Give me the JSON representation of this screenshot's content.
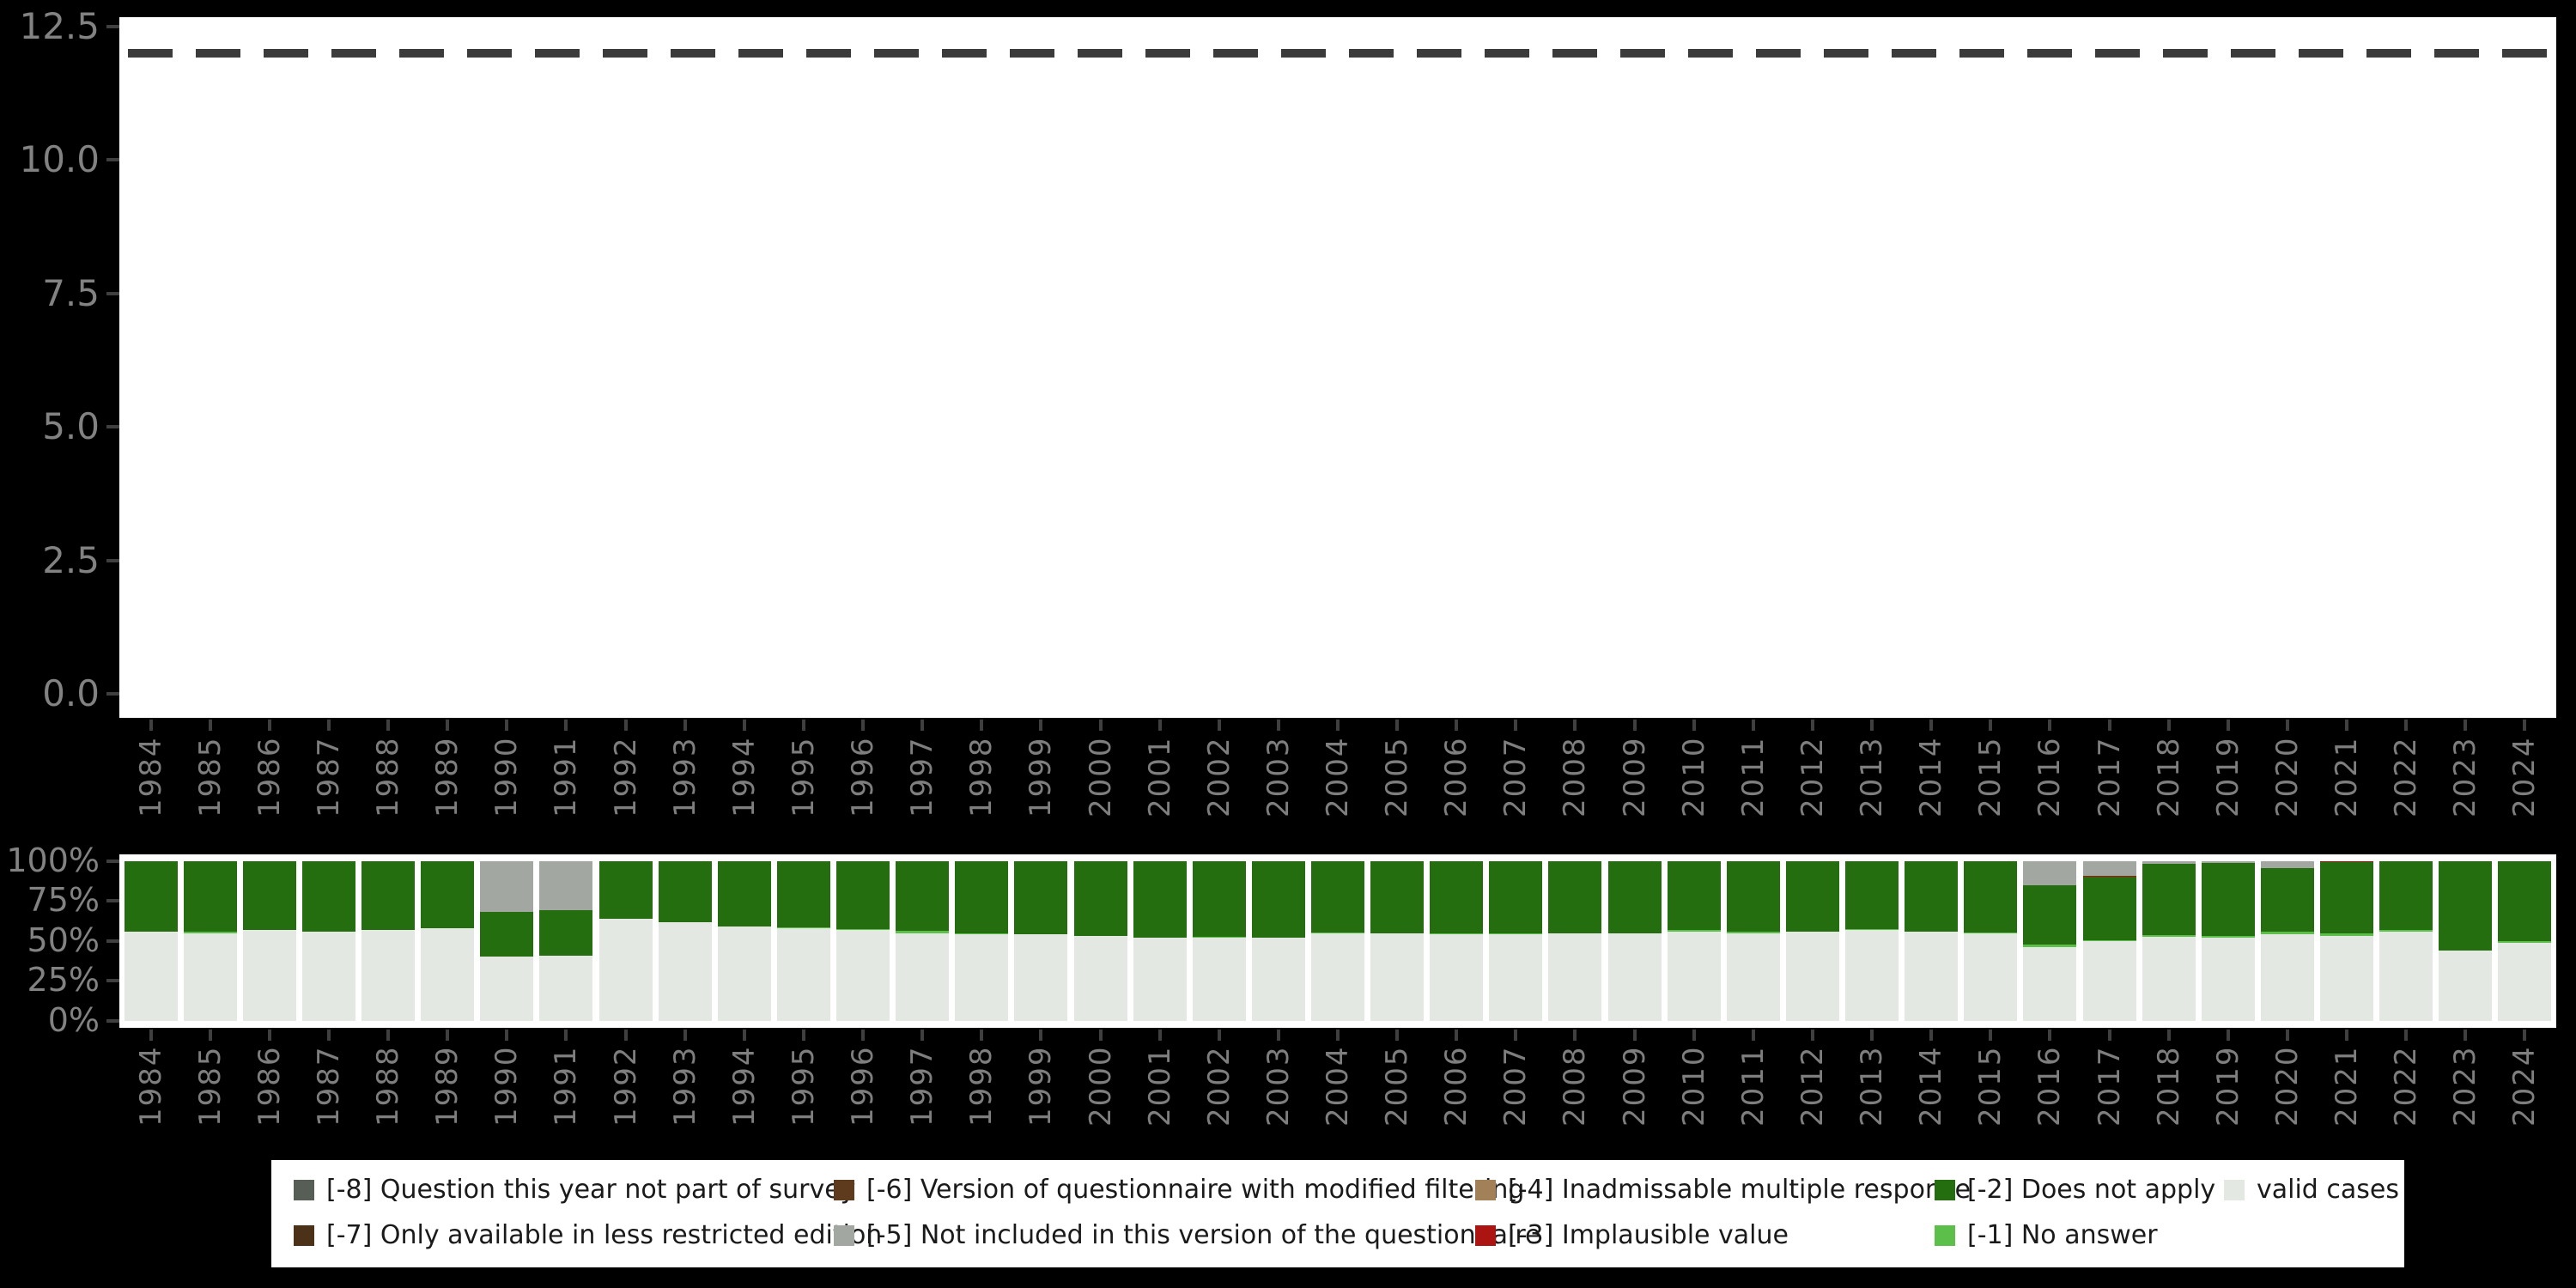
{
  "chart_data": {
    "type": "bar",
    "subtype": "two-panel missing-values overview: top panel with dashed reference line, bottom panel 100% stacked bars",
    "top_panel": {
      "ytick_labels": [
        "0.0",
        "2.5",
        "5.0",
        "7.5",
        "10.0",
        "12.5"
      ],
      "ytick_values": [
        0,
        2.5,
        5,
        7.5,
        10,
        12.5
      ],
      "ylim": [
        0,
        12.5
      ],
      "dashed_reference_value": 12,
      "dashed_line_color": "#3b3b3b",
      "grid": "off",
      "points": []
    },
    "bottom_panel": {
      "ytick_labels": [
        "0%",
        "25%",
        "50%",
        "75%",
        "100%"
      ],
      "ytick_values": [
        0,
        25,
        50,
        75,
        100
      ],
      "ylim": [
        0,
        100
      ],
      "grid": "off"
    },
    "categories": [
      "1984",
      "1985",
      "1986",
      "1987",
      "1988",
      "1989",
      "1990",
      "1991",
      "1992",
      "1993",
      "1994",
      "1995",
      "1996",
      "1997",
      "1998",
      "1999",
      "2000",
      "2001",
      "2002",
      "2003",
      "2004",
      "2005",
      "2006",
      "2007",
      "2008",
      "2009",
      "2010",
      "2011",
      "2012",
      "2013",
      "2014",
      "2015",
      "2016",
      "2017",
      "2018",
      "2019",
      "2020",
      "2021",
      "2022",
      "2023",
      "2024"
    ],
    "stack_order_bottom_to_top": [
      "valid cases",
      "[-1] No answer",
      "[-2] Does not apply",
      "[-3] Implausible value",
      "[-5] Not included in this version of the questionnaire"
    ],
    "series": [
      {
        "name": "valid cases",
        "color": "#e4e8e2",
        "values": [
          56,
          55,
          57,
          56,
          57,
          58,
          40,
          41,
          64,
          62,
          59,
          58,
          57,
          55,
          54,
          54,
          53,
          52,
          52,
          52,
          55,
          55,
          54,
          54,
          55,
          55,
          56,
          55,
          56,
          57,
          56,
          55,
          46,
          50,
          52.5,
          52,
          54,
          53,
          56,
          44,
          49
        ]
      },
      {
        "name": "[-1] No answer",
        "color": "#5bbf4a",
        "values": [
          0,
          1,
          0,
          0,
          0,
          0,
          0,
          0,
          0,
          0,
          0,
          0.7,
          0.7,
          1.5,
          1,
          0,
          0,
          0,
          0.7,
          0,
          0.5,
          0,
          0.6,
          0.6,
          0,
          0,
          1,
          0.8,
          0,
          0.7,
          0,
          0.5,
          2,
          0.5,
          1,
          1,
          2,
          1.5,
          0.7,
          0,
          0.7
        ]
      },
      {
        "name": "[-2] Does not apply",
        "color": "#246e10",
        "values": [
          44,
          44,
          43,
          44,
          43,
          42,
          28,
          28,
          36,
          38,
          41,
          41.3,
          42,
          43.2,
          44.7,
          45.7,
          46.7,
          47.7,
          47,
          47.7,
          44.5,
          45,
          45.4,
          45.4,
          45,
          44.7,
          43,
          43.9,
          44,
          42,
          44,
          44.1,
          37,
          39.5,
          45,
          46,
          39.5,
          45,
          43.3,
          56,
          50.3
        ]
      },
      {
        "name": "[-3] Implausible value",
        "color": "#ab1410",
        "values": [
          0,
          0,
          0,
          0,
          0,
          0,
          0,
          0,
          0,
          0,
          0,
          0,
          0.3,
          0.3,
          0.3,
          0.3,
          0.3,
          0.3,
          0.3,
          0.3,
          0,
          0,
          0,
          0,
          0,
          0.3,
          0,
          0.3,
          0,
          0.3,
          0,
          0.4,
          0,
          1,
          0,
          0,
          0,
          0.5,
          0,
          0,
          0
        ]
      },
      {
        "name": "[-5] Not included in this version of the questionnaire",
        "color": "#a3a7a1",
        "values": [
          0,
          0,
          0,
          0,
          0,
          0,
          32,
          31,
          0,
          0,
          0,
          0,
          0,
          0,
          0,
          0,
          0,
          0,
          0,
          0,
          0,
          0,
          0,
          0,
          0,
          0,
          0,
          0,
          0,
          0,
          0,
          0,
          15,
          9,
          1.5,
          1,
          4.5,
          0,
          0,
          0,
          0
        ]
      }
    ],
    "legend": {
      "position": "bottom",
      "background": "#ffffff",
      "columns": [
        [
          {
            "label": "[-8] Question this year not part of survey",
            "color": "#565e55"
          },
          {
            "label": "[-7] Only available in less restricted edition",
            "color": "#4a3118"
          }
        ],
        [
          {
            "label": "[-6] Version of questionnaire with modified filtering",
            "color": "#5e3b1d"
          },
          {
            "label": "[-5] Not included in this version of the questionnaire",
            "color": "#a3a7a1"
          }
        ],
        [
          {
            "label": "[-4] Inadmissable multiple response",
            "color": "#a28159"
          },
          {
            "label": "[-3] Implausible value",
            "color": "#ab1410"
          }
        ],
        [
          {
            "label": "[-2] Does not apply",
            "color": "#246e10"
          },
          {
            "label": "[-1] No answer",
            "color": "#5bbf4a"
          }
        ],
        [
          {
            "label": "valid cases",
            "color": "#e4e8e2"
          }
        ]
      ]
    },
    "colors": {
      "page_background": "#000000",
      "panel_background": "#ffffff",
      "axis_text": "#7e7e7e",
      "tick_mark": "#3f3f3f",
      "legend_text": "#1a1a1a"
    }
  }
}
